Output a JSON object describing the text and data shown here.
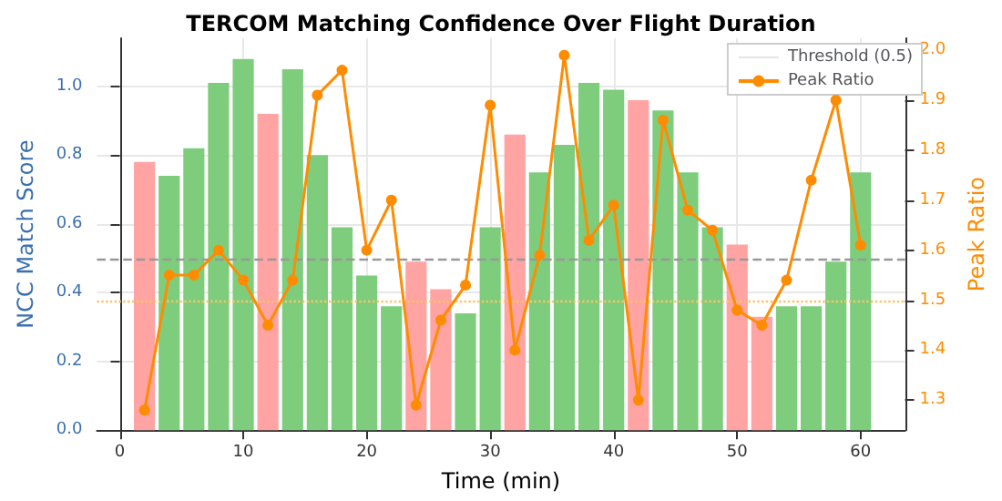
{
  "chart_data": {
    "type": "bar",
    "title": "TERCOM Matching Confidence Over Flight Duration",
    "xlabel": "Time (min)",
    "ylabel": "NCC Match Score",
    "y2label": "Peak Ratio",
    "x": [
      2,
      4,
      6,
      8,
      10,
      12,
      14,
      16,
      18,
      20,
      22,
      24,
      26,
      28,
      30,
      32,
      34,
      36,
      38,
      40,
      42,
      44,
      46,
      48,
      50,
      52,
      54,
      56,
      58,
      60
    ],
    "series": [
      {
        "values": [
          0.78,
          0.74,
          0.82,
          1.01,
          1.08,
          0.92,
          1.05,
          0.8,
          0.59,
          0.45,
          0.36,
          0.49,
          0.41,
          0.34,
          0.59,
          0.86,
          0.75,
          0.83,
          1.01,
          0.99,
          0.96,
          0.93,
          0.75,
          0.59,
          0.54,
          0.33,
          0.36,
          0.36,
          0.49,
          0.75
        ],
        "colors": [
          "#ffa3a3",
          "#7dcd7d",
          "#7dcd7d",
          "#7dcd7d",
          "#7dcd7d",
          "#ffa3a3",
          "#7dcd7d",
          "#7dcd7d",
          "#7dcd7d",
          "#7dcd7d",
          "#7dcd7d",
          "#ffa3a3",
          "#ffa3a3",
          "#7dcd7d",
          "#7dcd7d",
          "#ffa3a3",
          "#7dcd7d",
          "#7dcd7d",
          "#7dcd7d",
          "#7dcd7d",
          "#ffa3a3",
          "#7dcd7d",
          "#7dcd7d",
          "#7dcd7d",
          "#ffa3a3",
          "#ffa3a3",
          "#7dcd7d",
          "#7dcd7d",
          "#7dcd7d",
          "#7dcd7d"
        ]
      },
      {
        "type": "line",
        "name": "Peak Ratio",
        "axis": "y2",
        "color": "#ff8c00",
        "marker": "circle",
        "values": [
          1.28,
          1.55,
          1.55,
          1.6,
          1.54,
          1.45,
          1.54,
          1.91,
          1.96,
          1.6,
          1.7,
          1.29,
          1.46,
          1.53,
          1.89,
          1.4,
          1.59,
          1.99,
          1.62,
          1.69,
          1.3,
          1.86,
          1.68,
          1.64,
          1.48,
          1.45,
          1.54,
          1.74,
          1.9,
          1.61
        ]
      }
    ],
    "xlim": [
      -1.85,
      63.6
    ],
    "xticks": [
      0,
      10,
      20,
      30,
      40,
      50,
      60
    ],
    "ylim": [
      0,
      1.14
    ],
    "yticks": [
      {
        "value": 0,
        "label": "0.0"
      },
      0.2,
      0.4,
      0.6,
      0.8,
      {
        "value": 1,
        "label": "1.0"
      }
    ],
    "y2lim": [
      1.24,
      2.024
    ],
    "y2ticks": [
      1.3,
      1.4,
      1.5,
      1.6,
      1.7,
      1.8,
      1.9,
      {
        "value": 2,
        "label": "2.0"
      }
    ],
    "ref_lines": [
      {
        "axis": "y",
        "value": 0.5,
        "label": "Threshold (0.5)",
        "color": "#999999",
        "line_style": "dashed"
      },
      {
        "axis": "y2",
        "value": 1.5,
        "color": "#ffc266",
        "line_style": "dotted"
      }
    ],
    "grid": true,
    "legend": "top right"
  }
}
